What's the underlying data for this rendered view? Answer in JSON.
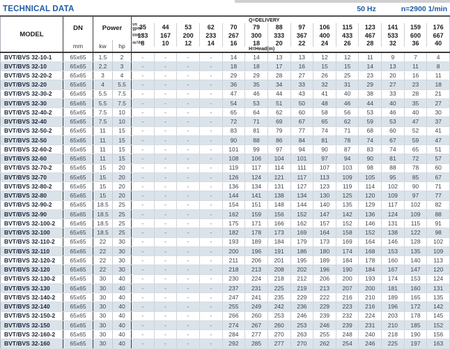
{
  "page": {
    "title": "TECHNICAL DATA",
    "frequency": "50 Hz",
    "speed": "n=2900 1/min"
  },
  "colors": {
    "accent_blue": "#1e5aa5",
    "row_stripe": "#dbe3ea",
    "model_text": "#1a2638",
    "border_dark": "#3b3b3b"
  },
  "table": {
    "headers": {
      "model": "MODEL",
      "dn": "DN",
      "dn_unit": "mm",
      "power": "Power",
      "kw": "kw",
      "hp": "hp",
      "delivery": "Q=DELIVERY",
      "head": "H=Head(m)"
    },
    "flow": {
      "gpm": {
        "unit": "us gpm",
        "values": [
          35,
          44,
          53,
          62,
          70,
          79,
          88,
          97,
          106,
          115,
          123,
          141,
          159,
          176
        ]
      },
      "lmin": {
        "unit": "l/min",
        "values": [
          133,
          167,
          200,
          233,
          267,
          300,
          333,
          367,
          400,
          433,
          467,
          533,
          600,
          667
        ]
      },
      "m3h": {
        "unit": "m³/h",
        "values": [
          8,
          10,
          12,
          14,
          16,
          18,
          20,
          22,
          24,
          26,
          28,
          32,
          36,
          40
        ]
      }
    },
    "rows": [
      {
        "model": "BVT/BVS 32-10-1",
        "dn": "65x65",
        "kw": "1.5",
        "hp": "2",
        "head": [
          "-",
          "-",
          "-",
          "-",
          14,
          14,
          13,
          13,
          12,
          12,
          11,
          9,
          7,
          4
        ]
      },
      {
        "model": "BVT/BVS 32-10",
        "dn": "65x65",
        "kw": "2.2",
        "hp": "3",
        "head": [
          "-",
          "-",
          "-",
          "-",
          18,
          18,
          17,
          16,
          15,
          15,
          14,
          13,
          11,
          8
        ]
      },
      {
        "model": "BVT/BVS 32-20-2",
        "dn": "65x65",
        "kw": "3",
        "hp": "4",
        "head": [
          "-",
          "-",
          "-",
          "-",
          29,
          29,
          28,
          27,
          26,
          25,
          23,
          20,
          16,
          11
        ]
      },
      {
        "model": "BVT/BVS 32-20",
        "dn": "65x65",
        "kw": "4",
        "hp": "5.5",
        "head": [
          "-",
          "-",
          "-",
          "-",
          36,
          35,
          34,
          33,
          32,
          31,
          29,
          27,
          23,
          18
        ]
      },
      {
        "model": "BVT/BVS 32-30-2",
        "dn": "65x65",
        "kw": "5.5",
        "hp": "7.5",
        "head": [
          "-",
          "-",
          "-",
          "-",
          47,
          46,
          44,
          43,
          41,
          40,
          38,
          33,
          28,
          21
        ]
      },
      {
        "model": "BVT/BVS 32-30",
        "dn": "65x65",
        "kw": "5.5",
        "hp": "7.5",
        "head": [
          "-",
          "-",
          "-",
          "-",
          54,
          53,
          51,
          50,
          48,
          46,
          44,
          40,
          35,
          27
        ]
      },
      {
        "model": "BVT/BVS 32-40-2",
        "dn": "65x65",
        "kw": "7.5",
        "hp": "10",
        "head": [
          "-",
          "-",
          "-",
          "-",
          65,
          64,
          62,
          60,
          58,
          56,
          53,
          46,
          40,
          30
        ]
      },
      {
        "model": "BVT/BVS 32-40",
        "dn": "65x65",
        "kw": "7.5",
        "hp": "10",
        "head": [
          "-",
          "-",
          "-",
          "-",
          72,
          71,
          69,
          67,
          65,
          62,
          59,
          53,
          47,
          37
        ]
      },
      {
        "model": "BVT/BVS 32-50-2",
        "dn": "65x65",
        "kw": "11",
        "hp": "15",
        "head": [
          "-",
          "-",
          "-",
          "-",
          83,
          81,
          79,
          77,
          74,
          71,
          68,
          60,
          52,
          41
        ]
      },
      {
        "model": "BVT/BVS 32-50",
        "dn": "65x65",
        "kw": "11",
        "hp": "15",
        "head": [
          "-",
          "-",
          "-",
          "-",
          90,
          88,
          86,
          84,
          81,
          78,
          74,
          67,
          59,
          47
        ]
      },
      {
        "model": "BVT/BVS 32-60-2",
        "dn": "65x65",
        "kw": "11",
        "hp": "15",
        "head": [
          "-",
          "-",
          "-",
          "-",
          101,
          99,
          97,
          94,
          90,
          87,
          83,
          74,
          65,
          51
        ]
      },
      {
        "model": "BVT/BVS 32-60",
        "dn": "65x65",
        "kw": "11",
        "hp": "15",
        "head": [
          "-",
          "-",
          "-",
          "-",
          108,
          106,
          104,
          101,
          97,
          94,
          90,
          81,
          72,
          57
        ]
      },
      {
        "model": "BVT/BVS 32-70-2",
        "dn": "65x65",
        "kw": "15",
        "hp": "20",
        "head": [
          "-",
          "-",
          "-",
          "-",
          119,
          117,
          114,
          111,
          107,
          103,
          98,
          88,
          78,
          60
        ]
      },
      {
        "model": "BVT/BVS 32-70",
        "dn": "65x65",
        "kw": "15",
        "hp": "20",
        "head": [
          "-",
          "-",
          "-",
          "-",
          126,
          124,
          121,
          117,
          113,
          109,
          105,
          95,
          85,
          67
        ]
      },
      {
        "model": "BVT/BVS 32-80-2",
        "dn": "65x65",
        "kw": "15",
        "hp": "20",
        "head": [
          "-",
          "-",
          "-",
          "-",
          136,
          134,
          131,
          127,
          123,
          119,
          114,
          102,
          90,
          71
        ]
      },
      {
        "model": "BVT/BVS 32-80",
        "dn": "65x65",
        "kw": "15",
        "hp": "20",
        "head": [
          "-",
          "-",
          "-",
          "-",
          144,
          141,
          138,
          134,
          130,
          125,
          120,
          109,
          97,
          77
        ]
      },
      {
        "model": "BVT/BVS 32-90-2",
        "dn": "65x65",
        "kw": "18.5",
        "hp": "25",
        "head": [
          "-",
          "-",
          "-",
          "-",
          154,
          151,
          148,
          144,
          140,
          135,
          129,
          117,
          102,
          82
        ]
      },
      {
        "model": "BVT/BVS 32-90",
        "dn": "65x65",
        "kw": "18.5",
        "hp": "25",
        "head": [
          "-",
          "-",
          "-",
          "-",
          162,
          159,
          156,
          152,
          147,
          142,
          136,
          124,
          109,
          88
        ]
      },
      {
        "model": "BVT/BVS 32-100-2",
        "dn": "65x65",
        "kw": "18.5",
        "hp": "25",
        "head": [
          "-",
          "-",
          "-",
          "-",
          175,
          171,
          166,
          162,
          157,
          152,
          146,
          131,
          115,
          91
        ]
      },
      {
        "model": "BVT/BVS 32-100",
        "dn": "65x65",
        "kw": "18.5",
        "hp": "25",
        "head": [
          "-",
          "-",
          "-",
          "-",
          182,
          178,
          173,
          169,
          164,
          158,
          152,
          138,
          122,
          98
        ]
      },
      {
        "model": "BVT/BVS 32-110-2",
        "dn": "65x65",
        "kw": "22",
        "hp": "30",
        "head": [
          "-",
          "-",
          "-",
          "-",
          193,
          189,
          184,
          179,
          173,
          169,
          164,
          146,
          128,
          102
        ]
      },
      {
        "model": "BVT/BVS 32-110",
        "dn": "65x65",
        "kw": "22",
        "hp": "30",
        "head": [
          "-",
          "-",
          "-",
          "-",
          200,
          196,
          191,
          186,
          180,
          174,
          168,
          153,
          135,
          109
        ]
      },
      {
        "model": "BVT/BVS 32-120-2",
        "dn": "65x65",
        "kw": "22",
        "hp": "30",
        "head": [
          "-",
          "-",
          "-",
          "-",
          211,
          206,
          201,
          195,
          189,
          184,
          178,
          160,
          140,
          113
        ]
      },
      {
        "model": "BVT/BVS 32-120",
        "dn": "65x65",
        "kw": "22",
        "hp": "30",
        "head": [
          "-",
          "-",
          "-",
          "-",
          218,
          213,
          208,
          202,
          196,
          190,
          184,
          167,
          147,
          120
        ]
      },
      {
        "model": "BVT/BVS 32-130-2",
        "dn": "65x65",
        "kw": "30",
        "hp": "40",
        "head": [
          "-",
          "-",
          "-",
          "-",
          230,
          224,
          218,
          212,
          206,
          200,
          193,
          174,
          153,
          124
        ]
      },
      {
        "model": "BVT/BVS 32-130",
        "dn": "65x65",
        "kw": "30",
        "hp": "40",
        "head": [
          "-",
          "-",
          "-",
          "-",
          237,
          231,
          225,
          219,
          213,
          207,
          200,
          181,
          160,
          131
        ]
      },
      {
        "model": "BVT/BVS 32-140-2",
        "dn": "65x65",
        "kw": "30",
        "hp": "40",
        "head": [
          "-",
          "-",
          "-",
          "-",
          247,
          241,
          235,
          229,
          222,
          216,
          210,
          189,
          165,
          135
        ]
      },
      {
        "model": "BVT/BVS 32-140",
        "dn": "65x65",
        "kw": "30",
        "hp": "40",
        "head": [
          "-",
          "-",
          "-",
          "-",
          255,
          249,
          242,
          236,
          229,
          223,
          216,
          196,
          172,
          142
        ]
      },
      {
        "model": "BVT/BVS 32-150-2",
        "dn": "65x65",
        "kw": "30",
        "hp": "40",
        "head": [
          "-",
          "-",
          "-",
          "-",
          266,
          260,
          253,
          246,
          239,
          232,
          224,
          203,
          178,
          145
        ]
      },
      {
        "model": "BVT/BVS 32-150",
        "dn": "65x65",
        "kw": "30",
        "hp": "40",
        "head": [
          "-",
          "-",
          "-",
          "-",
          274,
          267,
          260,
          253,
          246,
          239,
          231,
          210,
          185,
          152
        ]
      },
      {
        "model": "BVT/BVS 32-160-2",
        "dn": "65x65",
        "kw": "30",
        "hp": "40",
        "head": [
          "-",
          "-",
          "-",
          "-",
          284,
          277,
          270,
          263,
          255,
          248,
          240,
          218,
          190,
          156
        ]
      },
      {
        "model": "BVT/BVS 32-160",
        "dn": "65x65",
        "kw": "30",
        "hp": "40",
        "head": [
          "-",
          "-",
          "-",
          "-",
          292,
          285,
          277,
          270,
          262,
          254,
          246,
          225,
          197,
          163
        ]
      }
    ]
  }
}
